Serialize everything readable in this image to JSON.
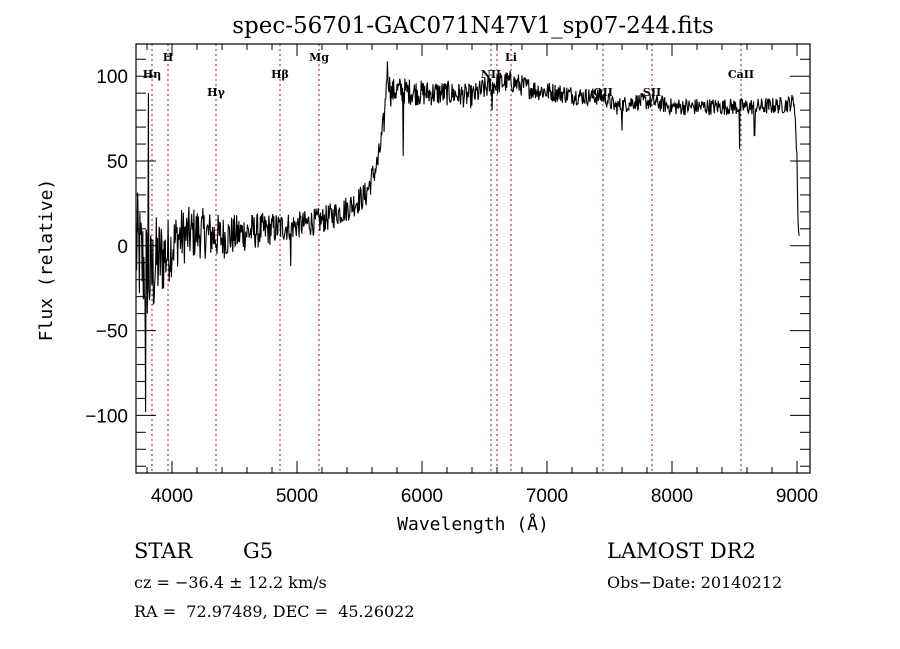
{
  "chart_data": {
    "type": "line",
    "title": "spec-56701-GAC071N47V1_sp07-244.fits",
    "xlabel": "Wavelength (Å)",
    "ylabel": "Flux (relative)",
    "xlim": [
      3712,
      9104
    ],
    "ylim": [
      -134,
      119
    ],
    "xticks": [
      4000,
      5000,
      6000,
      7000,
      8000,
      9000
    ],
    "xtick_labels": [
      "4000",
      "5000",
      "6000",
      "7000",
      "8000",
      "9000"
    ],
    "x_minor_step": 200,
    "yticks": [
      -100,
      -50,
      0,
      50,
      100
    ],
    "ytick_labels": [
      "−100",
      "−50",
      "0",
      "50",
      "100"
    ],
    "y_minor_step": 10,
    "grid": false,
    "line_color": "#000000",
    "marker_color": "#8b1a1a",
    "spectral_lines": [
      {
        "label": "Hη",
        "wavelength": 3840,
        "label_row": 2
      },
      {
        "label": "H",
        "wavelength": 3968,
        "label_row": 1
      },
      {
        "label": "Hγ",
        "wavelength": 4352,
        "label_row": 3
      },
      {
        "label": "Hβ",
        "wavelength": 4864,
        "label_row": 2
      },
      {
        "label": "Mg",
        "wavelength": 5176,
        "label_row": 1
      },
      {
        "label": "NII",
        "wavelength": 6552,
        "label_row": 2
      },
      {
        "label": "",
        "wavelength": 6600,
        "label_row": 2
      },
      {
        "label": "Li",
        "wavelength": 6712,
        "label_row": 1
      },
      {
        "label": "OII",
        "wavelength": 7448,
        "label_row": 3
      },
      {
        "label": "SII",
        "wavelength": 7840,
        "label_row": 3
      },
      {
        "label": "CaII",
        "wavelength": 8552,
        "label_row": 2
      }
    ],
    "series": [
      {
        "name": "flux",
        "anchors": {
          "wavelength": [
            3712,
            3760,
            3800,
            3830,
            3870,
            3950,
            4050,
            4200,
            4400,
            4600,
            4800,
            5000,
            5200,
            5400,
            5550,
            5650,
            5700,
            5720,
            5750,
            5800,
            6000,
            6200,
            6400,
            6550,
            6700,
            6900,
            7100,
            7300,
            7450,
            7550,
            7700,
            7850,
            8000,
            8200,
            8400,
            8550,
            8700,
            8900,
            8980,
            9000,
            9010,
            9020
          ],
          "flux": [
            0,
            -10,
            -15,
            -20,
            -10,
            -5,
            5,
            8,
            5,
            8,
            10,
            12,
            15,
            22,
            30,
            50,
            75,
            105,
            90,
            92,
            90,
            90,
            88,
            95,
            97,
            92,
            90,
            88,
            88,
            82,
            85,
            85,
            82,
            82,
            82,
            82,
            82,
            83,
            85,
            50,
            10,
            5
          ]
        },
        "noise": {
          "wavelength": [
            3712,
            3850,
            4000,
            4500,
            5000,
            5600,
            5800,
            6500,
            7500,
            9000
          ],
          "amplitude": [
            35,
            30,
            18,
            12,
            8,
            8,
            8,
            7,
            5,
            5
          ]
        },
        "features": [
          {
            "wavelength": 3790,
            "flux": -98
          },
          {
            "wavelength": 3810,
            "flux": 90
          },
          {
            "wavelength": 4950,
            "flux": -12
          },
          {
            "wavelength": 5850,
            "flux": 53
          },
          {
            "wavelength": 6560,
            "flux": 80
          },
          {
            "wavelength": 7600,
            "flux": 68
          },
          {
            "wavelength": 8540,
            "flux": 57
          },
          {
            "wavelength": 8660,
            "flux": 65
          }
        ]
      }
    ]
  },
  "info": {
    "object_class": "STAR",
    "subclass": "G5",
    "redshift_line": "cz = −36.4 ± 12.2 km/s",
    "coords_line": "RA =  72.97489, DEC =  45.26022",
    "survey": "LAMOST DR2",
    "obs_date_line": "Obs−Date: 20140212"
  }
}
